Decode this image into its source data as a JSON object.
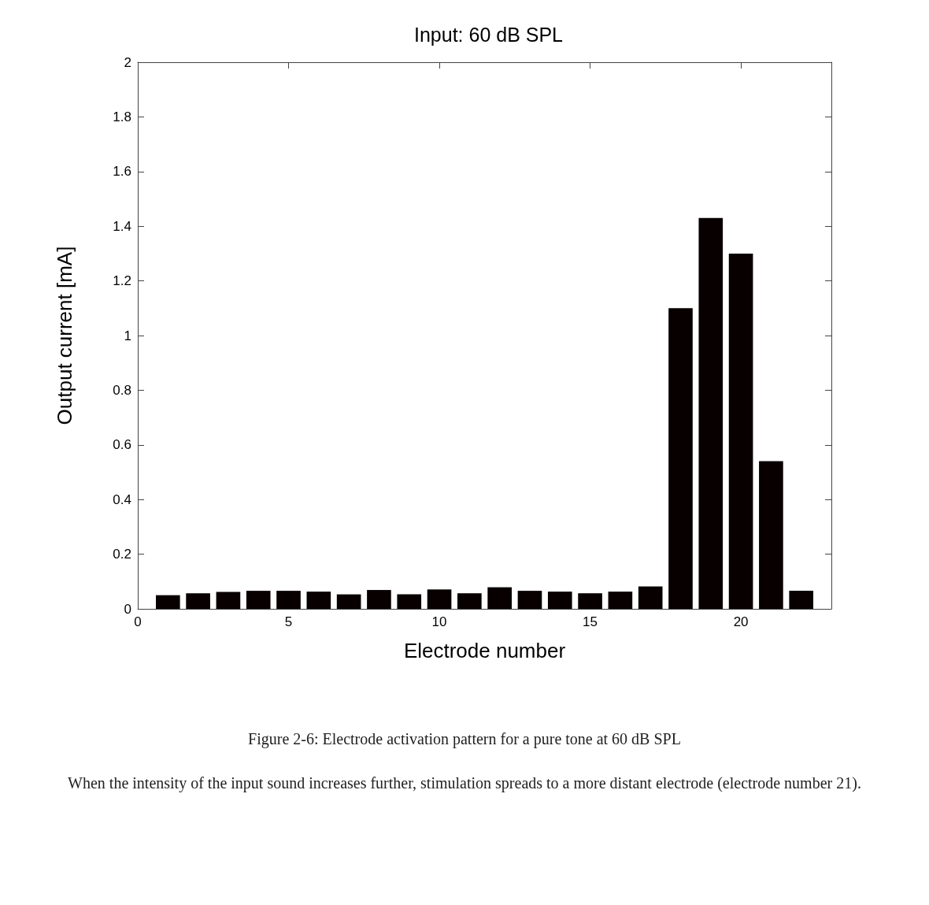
{
  "chart_data": {
    "type": "bar",
    "title": "Input: 60 dB SPL",
    "xlabel": "Electrode number",
    "ylabel": "Output current [mA]",
    "x": [
      1,
      2,
      3,
      4,
      5,
      6,
      7,
      8,
      9,
      10,
      11,
      12,
      13,
      14,
      15,
      16,
      17,
      18,
      19,
      20,
      21,
      22
    ],
    "values": [
      0.05,
      0.057,
      0.062,
      0.066,
      0.066,
      0.063,
      0.053,
      0.069,
      0.053,
      0.071,
      0.057,
      0.079,
      0.066,
      0.063,
      0.057,
      0.063,
      0.082,
      1.1,
      1.43,
      1.3,
      0.54,
      0.066
    ],
    "color": "#080000",
    "xlim": [
      0,
      23
    ],
    "xticks": [
      0,
      5,
      10,
      15,
      20
    ],
    "ylim": [
      0,
      2
    ],
    "yticks": [
      0,
      0.2,
      0.4,
      0.6,
      0.8,
      1,
      1.2,
      1.4,
      1.6,
      1.8,
      2
    ],
    "annotations": [
      "Figure 2-6: Electrode activation pattern for a pure tone at 60 dB SPL",
      "When the intensity of the input sound increases further, stimulation spreads to a more distant electrode (electrode number 21)."
    ]
  }
}
